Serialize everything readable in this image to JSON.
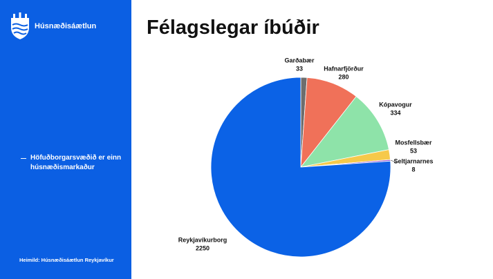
{
  "sidebar": {
    "brand": "Húsnæðisáætlun",
    "bullet": "Höfuðborgarsvæðið er einn húsnæðismarkaður",
    "source": "Heimild: Húsnæðisáætlun Reykjavíkur"
  },
  "chart_data": {
    "type": "pie",
    "title": "Félagslegar íbúðir",
    "categories": [
      "Garðabær",
      "Hafnarfjörður",
      "Kópavogur",
      "Mosfellsbær",
      "Seltjarnarnes",
      "Reykjavíkurborg"
    ],
    "values": [
      33,
      280,
      334,
      53,
      8,
      2250
    ],
    "colors": [
      "#6e6e6e",
      "#f07159",
      "#8ee3a9",
      "#f6c94a",
      "#9a5ad2",
      "#0b62e6"
    ]
  }
}
